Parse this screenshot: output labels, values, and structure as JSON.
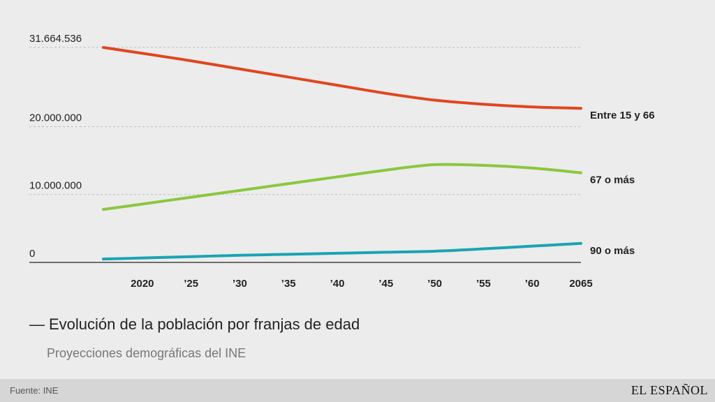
{
  "chart_data": {
    "type": "line",
    "title": "Evolución de la población por franjas de edad",
    "subtitle": "Proyecciones demográficas del INE",
    "x": [
      2016,
      2020,
      2025,
      2030,
      2035,
      2040,
      2045,
      2050,
      2055,
      2060,
      2065
    ],
    "x_tick_values": [
      2020,
      2025,
      2030,
      2035,
      2040,
      2045,
      2050,
      2055,
      2060,
      2065
    ],
    "x_tick_labels": [
      "2020",
      "’25",
      "’30",
      "’35",
      "’40",
      "’45",
      "’50",
      "’55",
      "’60",
      "2065"
    ],
    "y_tick_values": [
      0,
      10000000,
      20000000,
      31664536
    ],
    "y_tick_labels": [
      "0",
      "10.000.000",
      "20.000.000",
      "31.664.536"
    ],
    "ylim": [
      0,
      31664536
    ],
    "xlim": [
      2016,
      2065
    ],
    "grid": true,
    "series": [
      {
        "name": "Entre 15 y 66",
        "color": "#e0461f",
        "values": [
          31664536,
          30800000,
          29700000,
          28500000,
          27300000,
          26100000,
          24900000,
          23900000,
          23300000,
          22900000,
          22700000
        ]
      },
      {
        "name": "67 o más",
        "color": "#8cc63f",
        "values": [
          7800000,
          8600000,
          9600000,
          10600000,
          11600000,
          12600000,
          13600000,
          14400000,
          14300000,
          13900000,
          13200000
        ]
      },
      {
        "name": "90 o más",
        "color": "#1aa3b5",
        "values": [
          500000,
          650000,
          850000,
          1050000,
          1200000,
          1350000,
          1500000,
          1650000,
          2000000,
          2400000,
          2800000
        ]
      }
    ]
  },
  "footer": {
    "source": "Fuente: INE",
    "logo": "EL ESPAÑOL"
  }
}
